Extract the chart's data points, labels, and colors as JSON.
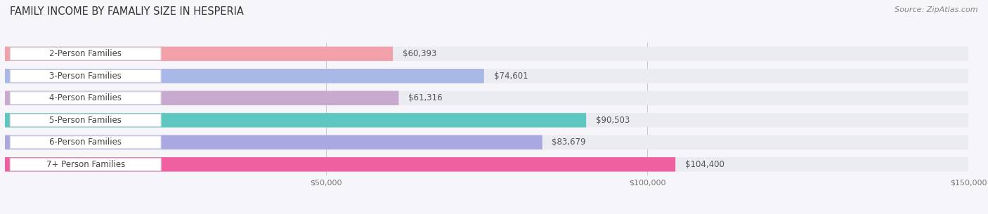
{
  "title": "FAMILY INCOME BY FAMALIY SIZE IN HESPERIA",
  "source": "Source: ZipAtlas.com",
  "categories": [
    "2-Person Families",
    "3-Person Families",
    "4-Person Families",
    "5-Person Families",
    "6-Person Families",
    "7+ Person Families"
  ],
  "values": [
    60393,
    74601,
    61316,
    90503,
    83679,
    104400
  ],
  "bar_colors": [
    "#f2a0aa",
    "#aab8e8",
    "#c8aad0",
    "#5ec8c0",
    "#aaa8e0",
    "#f060a0"
  ],
  "bar_bg_color": "#ebebf2",
  "xlim": [
    0,
    150000
  ],
  "xtick_positions": [
    50000,
    100000,
    150000
  ],
  "xtick_labels": [
    "$50,000",
    "$100,000",
    "$150,000"
  ],
  "title_fontsize": 10.5,
  "label_fontsize": 8.5,
  "value_fontsize": 8.5,
  "source_fontsize": 8,
  "background_color": "#f5f5fa"
}
